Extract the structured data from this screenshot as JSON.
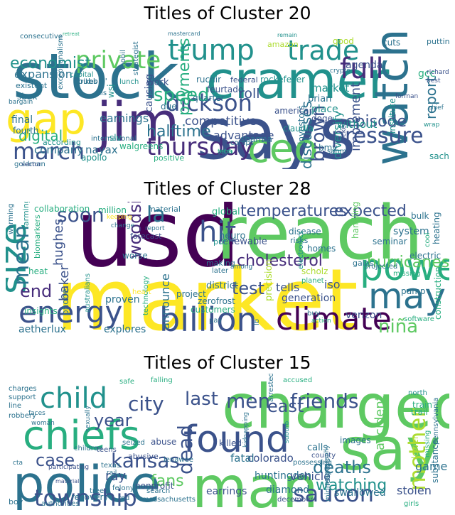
{
  "chart_data": [
    {
      "type": "wordcloud",
      "title": "Titles of Cluster 20",
      "colormap": "viridis",
      "words": [
        {
          "text": "stock",
          "weight": 1.0
        },
        {
          "text": "says",
          "weight": 0.98
        },
        {
          "text": "cramer",
          "weight": 0.9
        },
        {
          "text": "jim",
          "weight": 0.78
        },
        {
          "text": "gap",
          "weight": 0.75
        },
        {
          "text": "ceo",
          "weight": 0.62
        },
        {
          "text": "watch",
          "weight": 0.62
        },
        {
          "text": "trump",
          "weight": 0.5
        },
        {
          "text": "private",
          "weight": 0.45
        },
        {
          "text": "trade",
          "weight": 0.45
        },
        {
          "text": "full",
          "weight": 0.45
        },
        {
          "text": "dickson",
          "weight": 0.42
        },
        {
          "text": "march",
          "weight": 0.42
        },
        {
          "text": "thursday",
          "weight": 0.42
        },
        {
          "text": "pressure",
          "weight": 0.35
        },
        {
          "text": "economist",
          "weight": 0.28
        },
        {
          "text": "brown",
          "weight": 0.26
        },
        {
          "text": "halftime",
          "weight": 0.22
        },
        {
          "text": "episode",
          "weight": 0.22
        },
        {
          "text": "discusses",
          "weight": 0.2
        },
        {
          "text": "competitive",
          "weight": 0.18
        },
        {
          "text": "earnings",
          "weight": 0.18
        },
        {
          "text": "digital",
          "weight": 0.18
        },
        {
          "text": "company",
          "weight": 0.16
        },
        {
          "text": "nayax",
          "weight": 0.16
        },
        {
          "text": "advantage",
          "weight": 0.16
        },
        {
          "text": "speed",
          "weight": 0.16
        },
        {
          "text": "roll",
          "weight": 0.16
        },
        {
          "text": "payments",
          "weight": 0.16
        },
        {
          "text": "report",
          "weight": 0.16
        },
        {
          "text": "implement",
          "weight": 0.14
        },
        {
          "text": "diversify",
          "weight": 0.13
        },
        {
          "text": "investors",
          "weight": 0.12
        },
        {
          "text": "expansion",
          "weight": 0.12
        },
        {
          "text": "american",
          "weight": 0.12
        },
        {
          "text": "market",
          "weight": 0.12
        },
        {
          "text": "agenda",
          "weight": 0.12
        },
        {
          "text": "brian",
          "weight": 0.12
        },
        {
          "text": "causing",
          "weight": 0.12
        },
        {
          "text": "gcc",
          "weight": 0.12
        },
        {
          "text": "work",
          "weight": 0.12
        },
        {
          "text": "final",
          "weight": 0.11
        },
        {
          "text": "fourth",
          "weight": 0.11
        },
        {
          "text": "claudia",
          "weight": 0.11
        },
        {
          "text": "sharma",
          "weight": 0.1
        },
        {
          "text": "walgreens",
          "weight": 0.1
        },
        {
          "text": "apollo",
          "weight": 0.1
        },
        {
          "text": "positive",
          "weight": 0.1
        },
        {
          "text": "international",
          "weight": 0.1
        },
        {
          "text": "place",
          "weight": 0.1
        },
        {
          "text": "doge",
          "weight": 0.1
        },
        {
          "text": "quarter",
          "weight": 0.1
        },
        {
          "text": "feurtado",
          "weight": 0.1
        },
        {
          "text": "ruchir",
          "weight": 0.1
        },
        {
          "text": "rockefeller",
          "weight": 0.1
        },
        {
          "text": "federal",
          "weight": 0.1
        },
        {
          "text": "according",
          "weight": 0.1
        },
        {
          "text": "consecutive",
          "weight": 0.09
        },
        {
          "text": "mastercard",
          "weight": 0.08
        },
        {
          "text": "retreat",
          "weight": 0.08
        },
        {
          "text": "remain",
          "weight": 0.08
        },
        {
          "text": "amazon",
          "weight": 0.09
        },
        {
          "text": "good",
          "weight": 0.09
        },
        {
          "text": "cuts",
          "weight": 0.09
        },
        {
          "text": "putting",
          "weight": 0.09
        },
        {
          "text": "strikes",
          "weight": 0.09
        },
        {
          "text": "sbux",
          "weight": 0.09
        },
        {
          "text": "existent",
          "weight": 0.09
        },
        {
          "text": "bargain",
          "weight": 0.08
        },
        {
          "text": "slv",
          "weight": 0.09
        },
        {
          "text": "without",
          "weight": 0.1
        },
        {
          "text": "picked",
          "weight": 0.1
        },
        {
          "text": "bmy",
          "weight": 0.09
        },
        {
          "text": "sahm",
          "weight": 0.09
        },
        {
          "text": "institute",
          "weight": 0.08
        },
        {
          "text": "goldman",
          "weight": 0.09
        },
        {
          "text": "sachs",
          "weight": 0.08
        },
        {
          "text": "comps",
          "weight": 0.08
        },
        {
          "text": "non",
          "weight": 0.09
        },
        {
          "text": "due",
          "weight": 0.09
        },
        {
          "text": "lunch",
          "weight": 0.09
        },
        {
          "text": "mobil",
          "weight": 0.09
        },
        {
          "text": "bubble'",
          "weight": 0.09
        },
        {
          "text": "wsj",
          "weight": 0.09
        },
        {
          "text": "exceptionalism",
          "weight": 0.09
        },
        {
          "text": "strategist",
          "weight": 0.08
        },
        {
          "text": "tetra",
          "weight": 0.08
        },
        {
          "text": "sector",
          "weight": 0.08
        },
        {
          "text": "forman",
          "weight": 0.07
        },
        {
          "text": "chief",
          "weight": 0.07
        },
        {
          "text": "richard",
          "weight": 0.07
        },
        {
          "text": "best",
          "weight": 0.07
        },
        {
          "text": "wrap",
          "weight": 0.07
        },
        {
          "text": "crypto",
          "weight": 0.07
        },
        {
          "text": "otis",
          "weight": 0.07
        },
        {
          "text": "capital",
          "weight": 0.08
        },
        {
          "text": "taken",
          "weight": 0.08
        }
      ]
    },
    {
      "type": "wordcloud",
      "title": "Titles of Cluster 28",
      "colormap": "viridis",
      "words": [
        {
          "text": "market",
          "weight": 1.0
        },
        {
          "text": "usd",
          "weight": 0.98
        },
        {
          "text": "reach",
          "weight": 0.9
        },
        {
          "text": "power",
          "weight": 0.55
        },
        {
          "text": "billion",
          "weight": 0.5
        },
        {
          "text": "climate",
          "weight": 0.5
        },
        {
          "text": "size",
          "weight": 0.5
        },
        {
          "text": "may",
          "weight": 0.45
        },
        {
          "text": "energy",
          "weight": 0.42
        },
        {
          "text": "hit",
          "weight": 0.42
        },
        {
          "text": "mean",
          "weight": 0.38
        },
        {
          "text": "la",
          "weight": 0.3
        },
        {
          "text": "soon",
          "weight": 0.3
        },
        {
          "text": "niña",
          "weight": 0.3
        },
        {
          "text": "cholesterol",
          "weight": 0.26
        },
        {
          "text": "temperatures",
          "weight": 0.24
        },
        {
          "text": "expected",
          "weight": 0.24
        },
        {
          "text": "hurricanes",
          "weight": 0.24
        },
        {
          "text": "end",
          "weight": 0.24
        },
        {
          "text": "woodside",
          "weight": 0.22
        },
        {
          "text": "baker",
          "weight": 0.2
        },
        {
          "text": "hughes",
          "weight": 0.2
        },
        {
          "text": "test",
          "weight": 0.22
        },
        {
          "text": "announce",
          "weight": 0.2
        },
        {
          "text": "tells",
          "weight": 0.16
        },
        {
          "text": "iso",
          "weight": 0.16
        },
        {
          "text": "verizon",
          "weight": 0.12
        },
        {
          "text": "generation",
          "weight": 0.12
        },
        {
          "text": "aetherlux",
          "weight": 0.12
        },
        {
          "text": "explores",
          "weight": 0.12
        },
        {
          "text": "collaboration",
          "weight": 0.11
        },
        {
          "text": "million",
          "weight": 0.11
        },
        {
          "text": "insights",
          "weight": 0.11
        },
        {
          "text": "forecast",
          "weight": 0.1
        },
        {
          "text": "material",
          "weight": 0.1
        },
        {
          "text": "global",
          "weight": 0.1
        },
        {
          "text": "renewable",
          "weight": 0.1
        },
        {
          "text": "project",
          "weight": 0.1
        },
        {
          "text": "district",
          "weight": 0.1
        },
        {
          "text": "proven",
          "weight": 0.11
        },
        {
          "text": "technology",
          "weight": 0.09
        },
        {
          "text": "customers",
          "weight": 0.09
        },
        {
          "text": "zerofrost",
          "weight": 0.09
        },
        {
          "text": "precision",
          "weight": 0.1
        },
        {
          "text": "scholz",
          "weight": 0.1
        },
        {
          "text": "planet",
          "weight": 0.1
        },
        {
          "text": "seminar",
          "weight": 0.1
        },
        {
          "text": "system",
          "weight": 0.11
        },
        {
          "text": "handling",
          "weight": 0.1
        },
        {
          "text": "bulk",
          "weight": 0.1
        },
        {
          "text": "heating",
          "weight": 0.1
        },
        {
          "text": "electric",
          "weight": 0.1
        },
        {
          "text": "pump",
          "weight": 0.1
        },
        {
          "text": "construction",
          "weight": 0.1
        },
        {
          "text": "software",
          "weight": 0.08
        },
        {
          "text": "buy",
          "weight": 0.08
        },
        {
          "text": "action",
          "weight": 0.07
        },
        {
          "text": "pay",
          "weight": 0.08
        },
        {
          "text": "phone",
          "weight": 0.09
        },
        {
          "text": "australians",
          "weight": 0.08
        },
        {
          "text": "heart",
          "weight": 0.08
        },
        {
          "text": "worse",
          "weight": 0.08
        },
        {
          "text": "making",
          "weight": 0.08
        },
        {
          "text": "later",
          "weight": 0.08
        },
        {
          "text": "neuro",
          "weight": 0.09
        },
        {
          "text": "disease",
          "weight": 0.09
        },
        {
          "text": "risks",
          "weight": 0.08
        },
        {
          "text": "homes",
          "weight": 0.08
        },
        {
          "text": "electronics",
          "weight": 0.07
        },
        {
          "text": "gains",
          "weight": 0.08
        },
        {
          "text": "projected",
          "weight": 0.08
        },
        {
          "text": "missing",
          "weight": 0.08
        },
        {
          "text": "cool",
          "weight": 0.08
        },
        {
          "text": "warming",
          "weight": 0.07
        },
        {
          "text": "farming",
          "weight": 0.08
        },
        {
          "text": "biomarkers",
          "weight": 0.08
        },
        {
          "text": "heat",
          "weight": 0.08
        },
        {
          "text": "keeping",
          "weight": 0.07
        },
        {
          "text": "change",
          "weight": 0.07
        },
        {
          "text": "report",
          "weight": 0.07
        },
        {
          "text": "put",
          "weight": 0.08
        },
        {
          "text": "among",
          "weight": 0.07
        },
        {
          "text": "lb",
          "weight": 0.07
        }
      ]
    },
    {
      "type": "wordcloud",
      "title": "Titles of Cluster 15",
      "colormap": "viridis",
      "words": [
        {
          "text": "police",
          "weight": 1.0
        },
        {
          "text": "charged",
          "weight": 0.95
        },
        {
          "text": "man",
          "weight": 0.9
        },
        {
          "text": "say",
          "weight": 0.82
        },
        {
          "text": "chiefs",
          "weight": 0.75
        },
        {
          "text": "found",
          "weight": 0.62
        },
        {
          "text": "child",
          "weight": 0.55
        },
        {
          "text": "township",
          "weight": 0.48
        },
        {
          "text": "saucon",
          "weight": 0.45
        },
        {
          "text": "kansas",
          "weight": 0.4
        },
        {
          "text": "mother",
          "weight": 0.4
        },
        {
          "text": "city",
          "weight": 0.36
        },
        {
          "text": "men",
          "weight": 0.36
        },
        {
          "text": "last",
          "weight": 0.36
        },
        {
          "text": "friends",
          "weight": 0.34
        },
        {
          "text": "dead",
          "weight": 0.32
        },
        {
          "text": "deaths",
          "weight": 0.3
        },
        {
          "text": "case",
          "weight": 0.3
        },
        {
          "text": "year",
          "weight": 0.3
        },
        {
          "text": "east",
          "weight": 0.28
        },
        {
          "text": "fans",
          "weight": 0.26
        },
        {
          "text": "watching",
          "weight": 0.24
        },
        {
          "text": "colorado",
          "weight": 0.2
        },
        {
          "text": "huntingdon",
          "weight": 0.18
        },
        {
          "text": "vehicle",
          "weight": 0.18
        },
        {
          "text": "diamond",
          "weight": 0.18
        },
        {
          "text": "swallowed",
          "weight": 0.18
        },
        {
          "text": "stolen",
          "weight": 0.18
        },
        {
          "text": "accident",
          "weight": 0.18
        },
        {
          "text": "ray",
          "weight": 0.18
        },
        {
          "text": "fatal",
          "weight": 0.16
        },
        {
          "text": "game",
          "weight": 0.16
        },
        {
          "text": "earrings",
          "weight": 0.14
        },
        {
          "text": "lower",
          "weight": 0.14
        },
        {
          "text": "calls",
          "weight": 0.12
        },
        {
          "text": "county",
          "weight": 0.11
        },
        {
          "text": "images",
          "weight": 0.11
        },
        {
          "text": "killed",
          "weight": 0.11
        },
        {
          "text": "abuse",
          "weight": 0.11
        },
        {
          "text": "abusive",
          "weight": 0.1
        },
        {
          "text": "lenawee",
          "weight": 0.1
        },
        {
          "text": "nonprofit",
          "weight": 0.1
        },
        {
          "text": "recovery",
          "weight": 0.09
        },
        {
          "text": "red",
          "weight": 0.09
        },
        {
          "text": "massachusetts",
          "weight": 0.09
        },
        {
          "text": "december",
          "weight": 0.09
        },
        {
          "text": "authorities",
          "weight": 0.08
        },
        {
          "text": "boy",
          "weight": 0.09
        },
        {
          "text": "charges",
          "weight": 0.08
        },
        {
          "text": "support",
          "weight": 0.09
        },
        {
          "text": "line",
          "weight": 0.09
        },
        {
          "text": "robbery",
          "weight": 0.09
        },
        {
          "text": "faces",
          "weight": 0.08
        },
        {
          "text": "woman",
          "weight": 0.08
        },
        {
          "text": "children",
          "weight": 0.09
        },
        {
          "text": "teens",
          "weight": 0.09
        },
        {
          "text": "seized",
          "weight": 0.09
        },
        {
          "text": "texas",
          "weight": 0.09
        },
        {
          "text": "rail",
          "weight": 0.09
        },
        {
          "text": "tree",
          "weight": 0.08
        },
        {
          "text": "search",
          "weight": 0.08
        },
        {
          "text": "felony",
          "weight": 0.08
        },
        {
          "text": "participating",
          "weight": 0.08
        },
        {
          "text": "cta",
          "weight": 0.08
        },
        {
          "text": "material",
          "weight": 0.08
        },
        {
          "text": "safe",
          "weight": 0.08
        },
        {
          "text": "falling",
          "weight": 0.08
        },
        {
          "text": "accused",
          "weight": 0.08
        },
        {
          "text": "arrested",
          "weight": 0.08
        },
        {
          "text": "north",
          "weight": 0.08
        },
        {
          "text": "train",
          "weight": 0.09
        },
        {
          "text": "trail",
          "weight": 0.09
        },
        {
          "text": "pennsylvania",
          "weight": 0.08
        },
        {
          "text": "substance",
          "weight": 0.09
        },
        {
          "text": "girls",
          "weight": 0.09
        },
        {
          "text": "missing",
          "weight": 0.08
        },
        {
          "text": "possessing",
          "weight": 0.08
        },
        {
          "text": "kidnapping",
          "weight": 0.08
        },
        {
          "text": "minneapolis",
          "weight": 0.08
        },
        {
          "text": "pornography",
          "weight": 0.07
        },
        {
          "text": "suburb",
          "weight": 0.07
        },
        {
          "text": "sexually",
          "weight": 0.07
        }
      ]
    }
  ]
}
